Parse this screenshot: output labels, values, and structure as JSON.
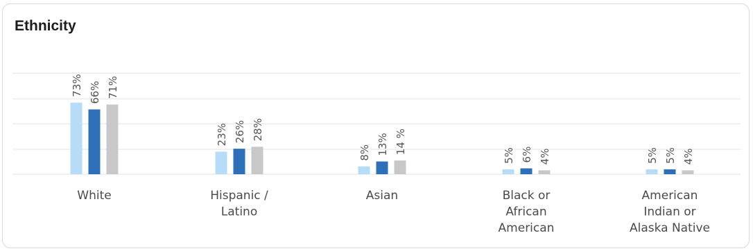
{
  "card": {
    "title": "Ethnicity"
  },
  "colors": {
    "series": [
      "#b7dcf7",
      "#2e70b7",
      "#c8c8cb"
    ],
    "grid": "#e3e3e6",
    "text": "#4a4a4d"
  },
  "chart_data": {
    "type": "bar",
    "title": "Ethnicity",
    "categories": [
      [
        "White"
      ],
      [
        "Hispanic /",
        "Latino"
      ],
      [
        "Asian"
      ],
      [
        "Black or",
        "African",
        "American"
      ],
      [
        "American",
        "Indian or",
        "Alaska Native"
      ]
    ],
    "series": [
      {
        "values": [
          73,
          23,
          8,
          5,
          5
        ]
      },
      {
        "values": [
          66,
          26,
          13,
          6,
          5
        ]
      },
      {
        "values": [
          71,
          28,
          14,
          4,
          4
        ]
      }
    ],
    "value_labels": [
      [
        "73%",
        "23%",
        "8%",
        "5%",
        "5%"
      ],
      [
        "66%",
        "26%",
        "13%",
        "6%",
        "5%"
      ],
      [
        "71%",
        "28%",
        "14 %",
        "4%",
        "4%"
      ]
    ],
    "ylim": [
      0,
      100
    ],
    "grid": true,
    "legend": "none"
  }
}
